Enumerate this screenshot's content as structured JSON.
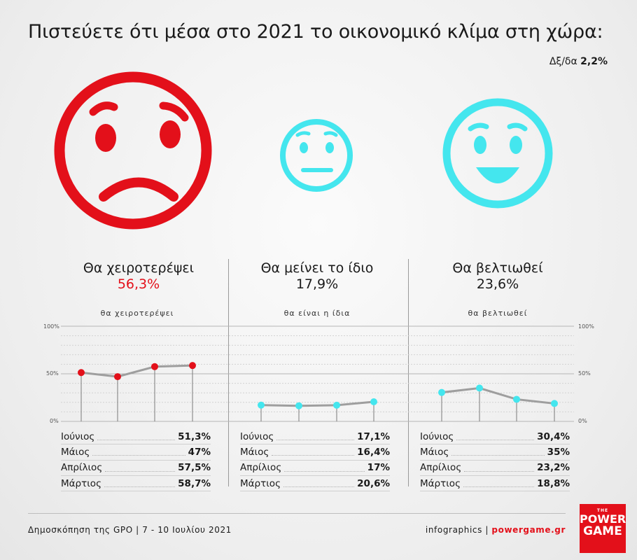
{
  "header": {
    "title": "Πιστεύετε ότι μέσα στο 2021 το οικονομικό κλίμα στη χώρα:",
    "undecided_label": "Δξ/δα",
    "undecided_value": "2,2%"
  },
  "colors": {
    "red": "#e3101a",
    "cyan": "#44e6ee",
    "line": "#9e9e9e"
  },
  "faces": [
    {
      "icon": "sad-face-icon",
      "color": "#e3101a"
    },
    {
      "icon": "neutral-face-icon",
      "color": "#44e6ee"
    },
    {
      "icon": "happy-face-icon",
      "color": "#44e6ee"
    }
  ],
  "columns": [
    {
      "label": "Θα χειροτερέψει",
      "pct": "56,3%",
      "chart_label": "θα χειροτερέψει"
    },
    {
      "label": "Θα μείνει το ίδιο",
      "pct": "17,9%",
      "chart_label": "θα είναι η ίδια"
    },
    {
      "label": "Θα βελτιωθεί",
      "pct": "23,6%",
      "chart_label": "θα βελτιωθεί"
    }
  ],
  "axis_ticks": [
    "100%",
    "50%",
    "0%"
  ],
  "chart_data": {
    "type": "line",
    "categories": [
      "Ιούνιος",
      "Μάιος",
      "Απρίλιος",
      "Μάρτιος"
    ],
    "ylim": [
      0,
      100
    ],
    "series": [
      {
        "name": "θα χειροτερέψει",
        "values": [
          51.3,
          47,
          57.5,
          58.7
        ],
        "labels": [
          "51,3%",
          "47%",
          "57,5%",
          "58,7%"
        ]
      },
      {
        "name": "θα είναι η ίδια",
        "values": [
          17.1,
          16.4,
          17,
          20.6
        ],
        "labels": [
          "17,1%",
          "16,4%",
          "17%",
          "20,6%"
        ]
      },
      {
        "name": "θα βελτιωθεί",
        "values": [
          30.4,
          35,
          23.2,
          18.8
        ],
        "labels": [
          "30,4%",
          "35%",
          "23,2%",
          "18,8%"
        ]
      }
    ]
  },
  "footer": {
    "source": "Δημοσκόπηση της GPO | 7 - 10 Ιουλίου 2021",
    "credit": "infographics | ",
    "site": "powergame.gr"
  },
  "logo": {
    "the": "THE",
    "line1": "POWER",
    "line2": "GAME"
  }
}
